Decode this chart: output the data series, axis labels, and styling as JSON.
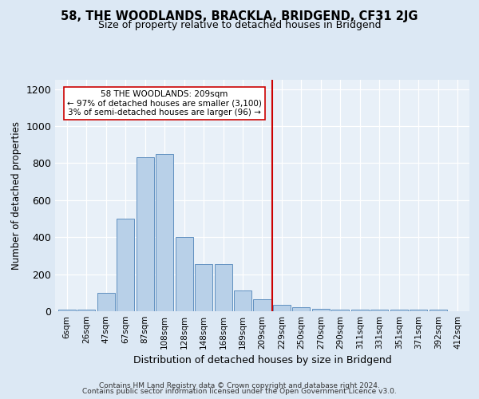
{
  "title1": "58, THE WOODLANDS, BRACKLA, BRIDGEND, CF31 2JG",
  "title2": "Size of property relative to detached houses in Bridgend",
  "xlabel": "Distribution of detached houses by size in Bridgend",
  "ylabel": "Number of detached properties",
  "bar_labels": [
    "6sqm",
    "26sqm",
    "47sqm",
    "67sqm",
    "87sqm",
    "108sqm",
    "128sqm",
    "148sqm",
    "168sqm",
    "189sqm",
    "209sqm",
    "229sqm",
    "250sqm",
    "270sqm",
    "290sqm",
    "311sqm",
    "331sqm",
    "351sqm",
    "371sqm",
    "392sqm",
    "412sqm"
  ],
  "bar_values": [
    10,
    10,
    100,
    500,
    830,
    850,
    400,
    255,
    255,
    110,
    65,
    35,
    20,
    12,
    10,
    10,
    10,
    10,
    10,
    10,
    0
  ],
  "bar_color": "#b8d0e8",
  "bar_edge_color": "#6090c0",
  "vline_x": 10,
  "vline_color": "#cc0000",
  "annotation_text": "58 THE WOODLANDS: 209sqm\n← 97% of detached houses are smaller (3,100)\n3% of semi-detached houses are larger (96) →",
  "annotation_box_color": "white",
  "annotation_box_edge": "#cc0000",
  "ylim": [
    0,
    1250
  ],
  "yticks": [
    0,
    200,
    400,
    600,
    800,
    1000,
    1200
  ],
  "footer1": "Contains HM Land Registry data © Crown copyright and database right 2024.",
  "footer2": "Contains public sector information licensed under the Open Government Licence v3.0.",
  "background_color": "#dce8f4",
  "plot_bg_color": "#e8f0f8"
}
